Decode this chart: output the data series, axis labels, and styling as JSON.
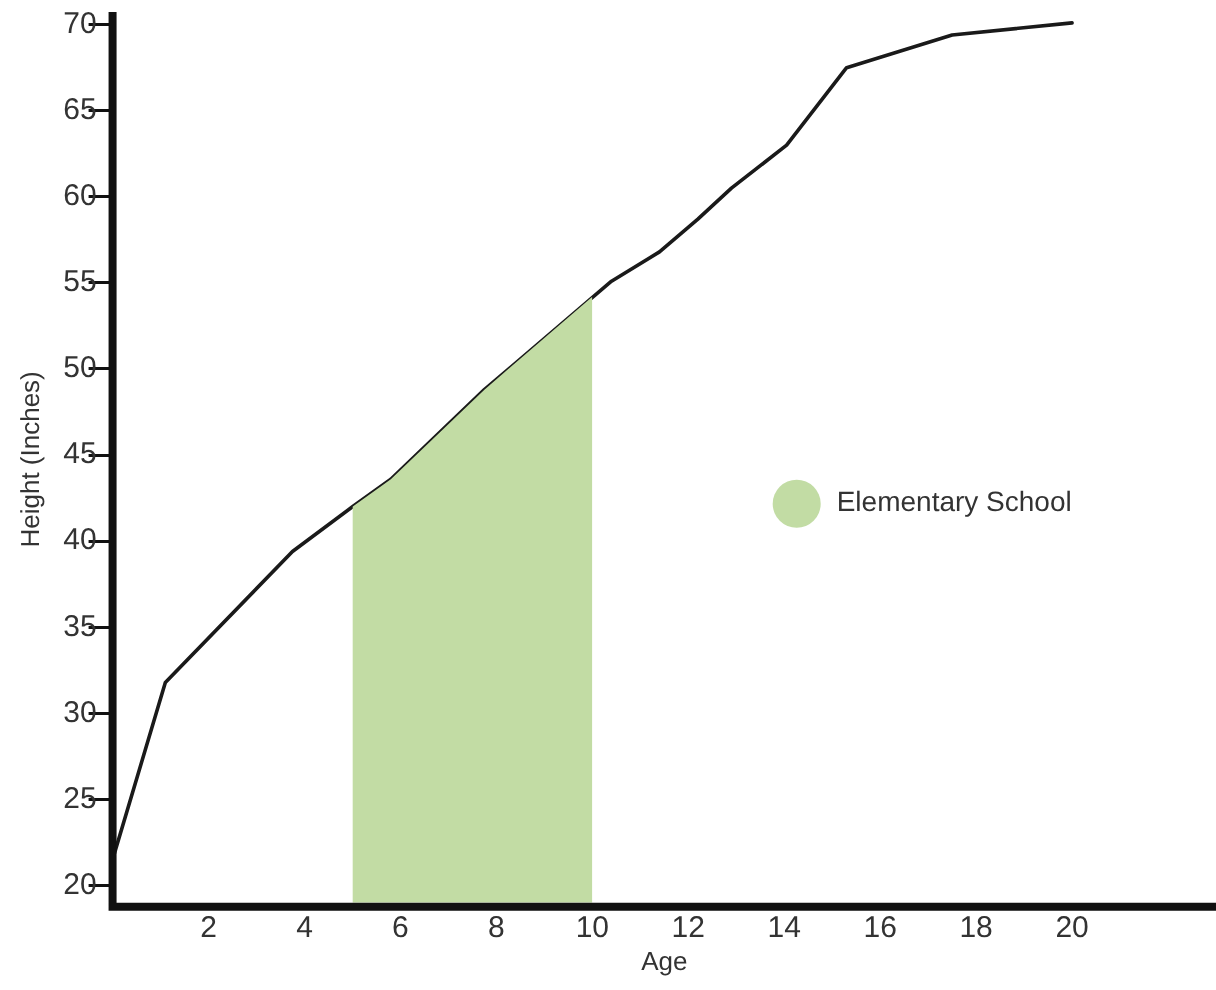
{
  "chart_data": {
    "type": "line",
    "xlabel": "Age",
    "ylabel": "Height (Inches)",
    "series": [
      {
        "type": "area",
        "name": "Elementary School",
        "color": "#c2dca4",
        "x": [
          5,
          5.8,
          7.75,
          10
        ],
        "values": [
          42.0,
          43.6,
          48.8,
          54.2
        ]
      },
      {
        "color": "#1a1a1a",
        "x": [
          0,
          1.1,
          3.75,
          5,
          5.8,
          7.75,
          10.4,
          11.4,
          12.2,
          12.9,
          14.05,
          15.3,
          17.5,
          20
        ],
        "values": [
          21.5,
          31.8,
          39.4,
          42.0,
          43.6,
          48.8,
          55.1,
          56.8,
          58.7,
          60.5,
          63.0,
          67.5,
          69.4,
          70.1
        ]
      }
    ],
    "xlim": [
      0,
      23
    ],
    "xticks": [
      2,
      4,
      6,
      8,
      10,
      12,
      14,
      16,
      18,
      20
    ],
    "ylim": [
      19,
      70.5
    ],
    "yticks": [
      20,
      25,
      30,
      35,
      40,
      45,
      50,
      55,
      60,
      65,
      70
    ],
    "legend": "right",
    "grid": false,
    "marker": "none",
    "line_style": "solid"
  }
}
